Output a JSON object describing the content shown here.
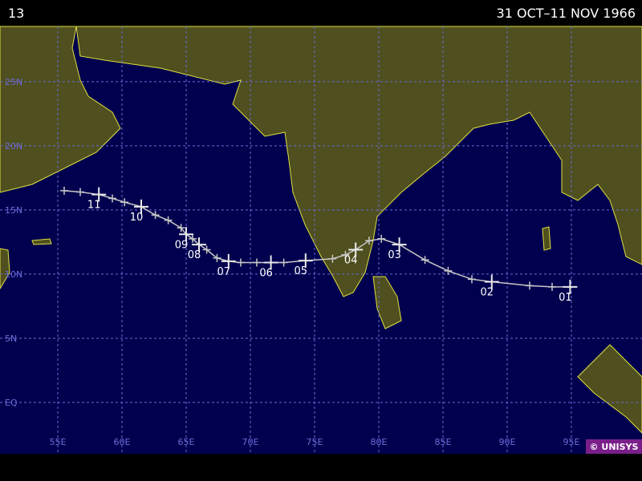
{
  "header": {
    "left": "13",
    "right": "31 OCT–11 NOV 1966"
  },
  "map": {
    "type": "track",
    "xlim": [
      50.5,
      100.5
    ],
    "ylim": [
      -4,
      29.3
    ],
    "xticks": [
      {
        "value": 55,
        "label": "55E"
      },
      {
        "value": 60,
        "label": "60E"
      },
      {
        "value": 65,
        "label": "65E"
      },
      {
        "value": 70,
        "label": "70E"
      },
      {
        "value": 75,
        "label": "75E"
      },
      {
        "value": 80,
        "label": "80E"
      },
      {
        "value": 85,
        "label": "85E"
      },
      {
        "value": 90,
        "label": "90E"
      },
      {
        "value": 95,
        "label": "95E"
      }
    ],
    "yticks": [
      {
        "value": 0,
        "label": "EQ"
      },
      {
        "value": 5,
        "label": "5N"
      },
      {
        "value": 10,
        "label": "10N"
      },
      {
        "value": 15,
        "label": "15N"
      },
      {
        "value": 20,
        "label": "20N"
      },
      {
        "value": 25,
        "label": "25N"
      }
    ],
    "grid": true,
    "track": {
      "color": "#c8c8c8",
      "lon": [
        94.9,
        93.5,
        91.75,
        88.8,
        87.25,
        85.4,
        83.6,
        81.6,
        80.2,
        79.25,
        78.2,
        77.4,
        76.4,
        74.3,
        72.6,
        71.6,
        70.5,
        69.25,
        68.3,
        67.4,
        66.6,
        66.0,
        65.5,
        65.0,
        64.6,
        63.6,
        62.6,
        61.5,
        60.2,
        59.25,
        58.2,
        56.75,
        55.5
      ],
      "lat": [
        9.0,
        9.0,
        9.1,
        9.4,
        9.6,
        10.25,
        11.1,
        12.3,
        12.75,
        12.6,
        11.9,
        11.5,
        11.2,
        11.05,
        10.9,
        10.9,
        10.9,
        10.9,
        11.0,
        11.25,
        11.9,
        12.3,
        12.75,
        13.1,
        13.6,
        14.2,
        14.6,
        15.25,
        15.6,
        15.9,
        16.2,
        16.4,
        16.5
      ]
    },
    "days": [
      {
        "label": "01",
        "lon": 94.9,
        "lat": 9.0
      },
      {
        "label": "02",
        "lon": 88.8,
        "lat": 9.4
      },
      {
        "label": "03",
        "lon": 81.6,
        "lat": 12.3
      },
      {
        "label": "04",
        "lon": 78.2,
        "lat": 11.9
      },
      {
        "label": "05",
        "lon": 74.3,
        "lat": 11.05
      },
      {
        "label": "06",
        "lon": 71.6,
        "lat": 10.9
      },
      {
        "label": "07",
        "lon": 68.3,
        "lat": 11.0
      },
      {
        "label": "08",
        "lon": 66.0,
        "lat": 12.3
      },
      {
        "label": "09",
        "lon": 65.0,
        "lat": 13.1
      },
      {
        "label": "10",
        "lon": 61.5,
        "lat": 15.25
      },
      {
        "label": "11",
        "lon": 58.2,
        "lat": 16.2
      }
    ]
  },
  "footer": {
    "credit": "© UNISYS"
  }
}
